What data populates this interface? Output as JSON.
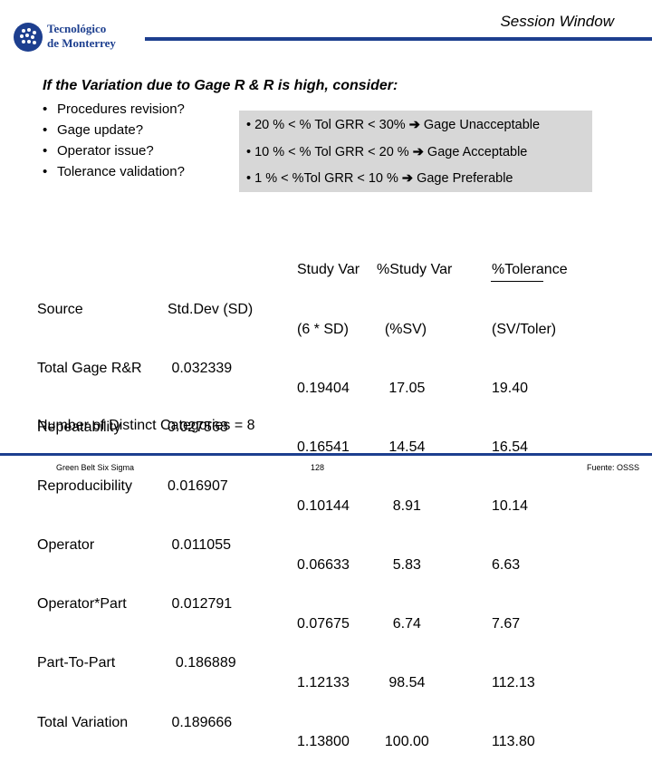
{
  "logo": {
    "line1": "Tecnológico",
    "line2": "de Monterrey"
  },
  "header": {
    "title": "Session Window"
  },
  "headline": "If the Variation due to Gage R & R is high, consider:",
  "bullets": [
    "Procedures revision?",
    "Gage update?",
    "Operator issue?",
    "Tolerance validation?"
  ],
  "criteria": [
    {
      "prefix": "• 20 % < % Tol GRR < 30%",
      "arrow": "➔",
      "result": "Gage Unacceptable"
    },
    {
      "prefix": "• 10 % < % Tol GRR < 20 %",
      "arrow": "➔",
      "result": "Gage Acceptable"
    },
    {
      "prefix": "• 1 % < %Tol GRR < 10 %",
      "arrow": "➔",
      "result": "Gage Preferable"
    }
  ],
  "table": {
    "source": [
      "",
      "Source",
      "Total Gage R&R",
      "Repeatability",
      "Reproducibility",
      "Operator",
      "Operator*Part",
      "Part-To-Part",
      "Total Variation"
    ],
    "stddev": [
      "",
      "Std.Dev (SD)",
      " 0.032339",
      "0.027568",
      "0.016907",
      " 0.011055",
      " 0.012791",
      "  0.186889",
      " 0.189666"
    ],
    "studyvar": [
      "Study Var",
      "(6 * SD)",
      "0.19404",
      "0.16541",
      "0.10144",
      "0.06633",
      "0.07675",
      "1.12133",
      "1.13800"
    ],
    "pct_sv": [
      "%Study Var",
      "  (%SV)",
      "   17.05",
      "   14.54",
      "    8.91",
      "    5.83",
      "    6.74",
      "   98.54",
      "  100.00"
    ],
    "pct_tol": [
      "%Tolerance",
      "(SV/Toler)",
      "19.40",
      "16.54",
      "10.14",
      "6.63",
      "7.67",
      "112.13",
      "113.80"
    ]
  },
  "ndc": "Number of Distinct Categories = 8",
  "footer": {
    "left": "Green Belt Six Sigma",
    "center": "128",
    "right": "Fuente: OSSS"
  },
  "colors": {
    "brand": "#1d3f8f",
    "criteria_bg": "#d7d7d7"
  }
}
